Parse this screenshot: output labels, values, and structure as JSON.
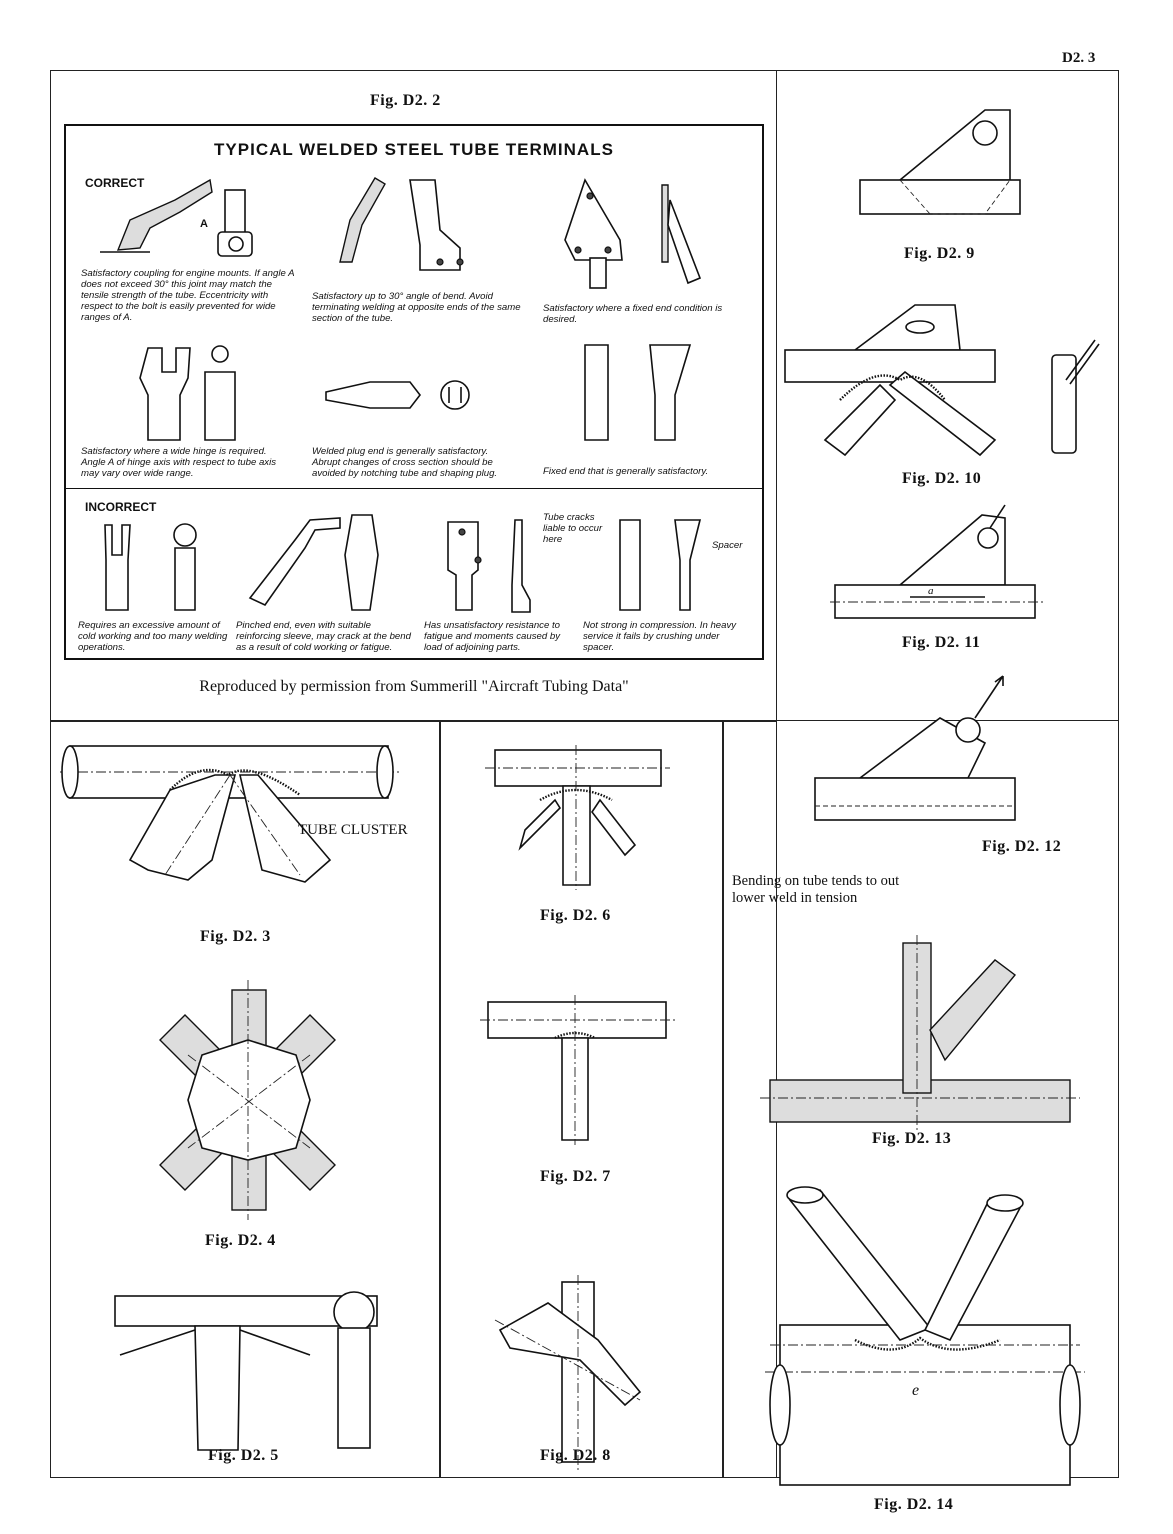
{
  "page": {
    "number": "D2. 3"
  },
  "fig_d2_2": {
    "caption": "Fig.  D2. 2",
    "title": "TYPICAL  WELDED  STEEL  TUBE  TERMINALS",
    "correct_label": "CORRECT",
    "incorrect_label": "INCORRECT",
    "correct_notes": [
      "Satisfactory coupling for engine mounts. If angle A does not exceed 30° this joint may match the tensile strength of the tube. Eccentricity with respect to the bolt is easily prevented for wide ranges of A.",
      "Satisfactory up to 30° angle of bend. Avoid terminating welding at opposite ends of the same section of the tube.",
      "Satisfactory where a fixed end condition is desired.",
      "Satisfactory where a wide hinge is required. Angle A of hinge axis with respect to tube axis may vary over wide range.",
      "Welded plug end is generally satisfactory. Abrupt changes of cross section should be avoided by notching tube and shaping plug.",
      "Fixed end that is generally satisfactory."
    ],
    "incorrect_notes": [
      "Requires an excessive amount of cold working and too many welding operations.",
      "Pinched end, even with suitable reinforcing sleeve, may crack at the bend as a result of cold working or fatigue.",
      "Has unsatisfactory resistance to fatigue and moments caused by load of adjoining parts.",
      "Not strong in compression. In heavy service it fails by crushing under spacer."
    ],
    "angle_label": "A",
    "tube_crack_note": "Tube cracks liable to occur here",
    "spacer_label": "Spacer",
    "credit": "Reproduced by permission from Summerill \"Aircraft Tubing Data\""
  },
  "figures": {
    "d2_3": {
      "caption": "Fig.  D2. 3",
      "label": "TUBE CLUSTER"
    },
    "d2_4": {
      "caption": "Fig.  D2. 4"
    },
    "d2_5": {
      "caption": "Fig.  D2. 5"
    },
    "d2_6": {
      "caption": "Fig.  D2. 6"
    },
    "d2_7": {
      "caption": "Fig.  D2. 7"
    },
    "d2_8": {
      "caption": "Fig.  D2. 8"
    },
    "d2_9": {
      "caption": "Fig.  D2. 9"
    },
    "d2_10": {
      "caption": "Fig.  D2. 10"
    },
    "d2_11": {
      "caption": "Fig.  D2. 11",
      "dim_a": "a"
    },
    "d2_12": {
      "caption": "Fig.  D2. 12"
    },
    "d2_13": {
      "caption": "Fig.  D2. 13",
      "note": "Bending on tube tends to out lower weld in tension"
    },
    "d2_14": {
      "caption": "Fig.  D2. 14",
      "dim_e": "e"
    }
  }
}
